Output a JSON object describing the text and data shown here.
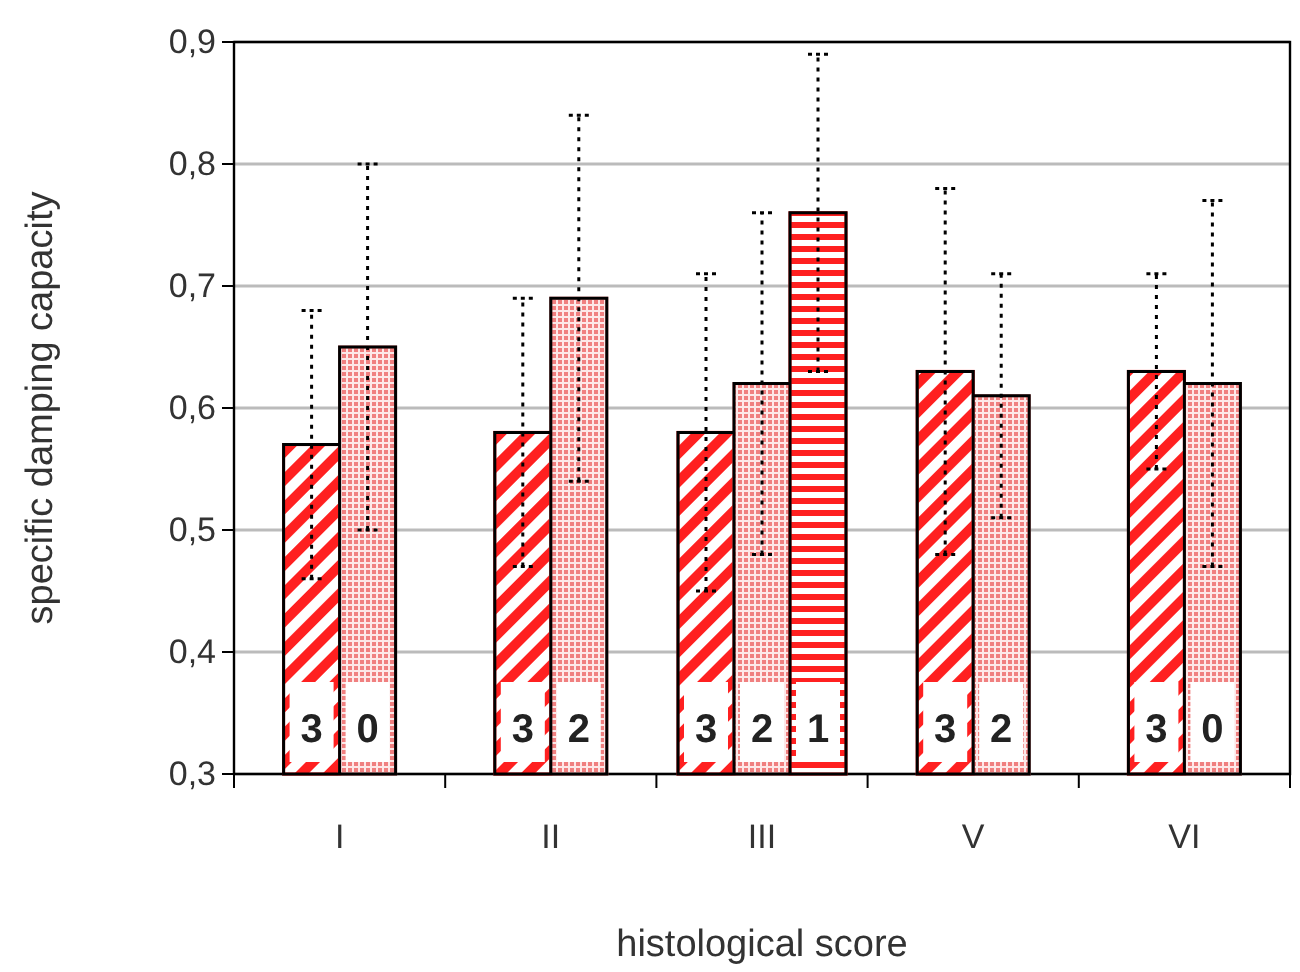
{
  "chart_data": {
    "type": "bar",
    "xlabel": "histological score",
    "ylabel": "specific damping capacity",
    "categories": [
      "I",
      "II",
      "III",
      "V",
      "VI"
    ],
    "series": [
      {
        "color": "#ff2020",
        "values": [
          0.57,
          0.58,
          0.58,
          0.63,
          0.63
        ],
        "errors": [
          [
            0.46,
            0.68
          ],
          [
            0.47,
            0.69
          ],
          [
            0.45,
            0.71
          ],
          [
            0.48,
            0.78
          ],
          [
            0.55,
            0.71
          ]
        ]
      },
      {
        "color": "#f08080",
        "values": [
          0.65,
          0.69,
          0.62,
          0.61,
          0.62
        ],
        "errors": [
          [
            0.5,
            0.8
          ],
          [
            0.54,
            0.84
          ],
          [
            0.48,
            0.76
          ],
          [
            0.51,
            0.71
          ],
          [
            0.47,
            0.77
          ]
        ]
      },
      {
        "color": "#ff2020",
        "values": [
          null,
          null,
          0.76,
          null,
          null
        ],
        "errors": [
          null,
          null,
          [
            0.63,
            0.89
          ],
          null,
          null
        ]
      }
    ],
    "ylim": [
      0.3,
      0.9
    ],
    "yticks": [
      {
        "value": 0.3,
        "label": "0,3"
      },
      {
        "value": 0.4,
        "label": "0,4"
      },
      {
        "value": 0.5,
        "label": "0,5"
      },
      {
        "value": 0.6,
        "label": "0,6"
      },
      {
        "value": 0.7,
        "label": "0,7"
      },
      {
        "value": 0.8,
        "label": "0,8"
      },
      {
        "value": 0.9,
        "label": "0,9"
      }
    ],
    "grid": "y",
    "annotations": [
      {
        "text": "3",
        "x": "I",
        "y": 0.3
      },
      {
        "text": "0",
        "x": "I",
        "y": 0.3
      },
      {
        "text": "3",
        "x": "II",
        "y": 0.3
      },
      {
        "text": "2",
        "x": "II",
        "y": 0.3
      },
      {
        "text": "3",
        "x": "III",
        "y": 0.3
      },
      {
        "text": "2",
        "x": "III",
        "y": 0.3
      },
      {
        "text": "1",
        "x": "III",
        "y": 0.3
      },
      {
        "text": "3",
        "x": "V",
        "y": 0.3
      },
      {
        "text": "2",
        "x": "V",
        "y": 0.3
      },
      {
        "text": "3",
        "x": "VI",
        "y": 0.3
      },
      {
        "text": "0",
        "x": "VI",
        "y": 0.3
      }
    ]
  }
}
